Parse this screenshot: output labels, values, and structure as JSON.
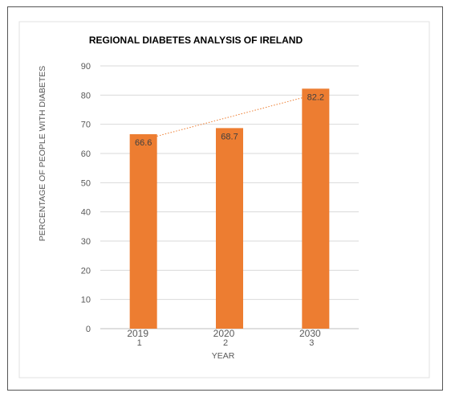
{
  "chart_data": {
    "type": "bar",
    "title": "REGIONAL DIABETES ANALYSIS OF IRELAND",
    "xlabel": "YEAR",
    "ylabel": "PERCENTAGE  OF PEOPLE WITH DIABETES",
    "categories": [
      "2019",
      "2020",
      "2030"
    ],
    "category_index_labels": [
      "1",
      "2",
      "3"
    ],
    "values": [
      66.6,
      68.7,
      82.2
    ],
    "data_labels": [
      "66.6",
      "68.7",
      "82.2"
    ],
    "ylim": [
      0,
      90
    ],
    "yticks": [
      "0",
      "10",
      "20",
      "30",
      "40",
      "50",
      "60",
      "70",
      "80",
      "90"
    ],
    "grid": true,
    "bar_color": "#ed7d31",
    "trendline": {
      "type": "linear",
      "color": "#ed7d31",
      "style": "dotted"
    },
    "legend": "none"
  }
}
